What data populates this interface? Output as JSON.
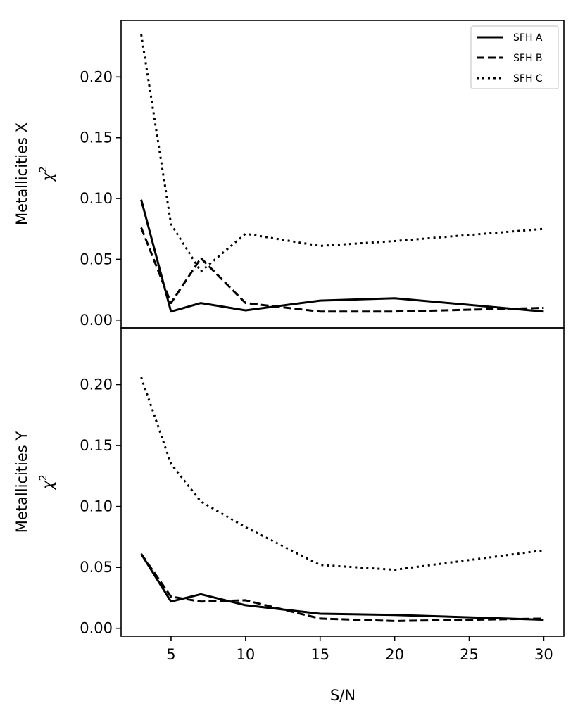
{
  "chart_data": [
    {
      "type": "line",
      "panel": "top",
      "ylabel": "Metallicities X",
      "ylabel_math": "χ",
      "ylabel_sup": "2",
      "xlabel": "",
      "xlim": [
        1.65,
        31.35
      ],
      "ylim": [
        -0.0065,
        0.2465
      ],
      "yticks": [
        0.0,
        0.05,
        0.1,
        0.15,
        0.2
      ],
      "ytick_labels": [
        "0.00",
        "0.05",
        "0.10",
        "0.15",
        "0.20"
      ],
      "x": [
        3,
        5,
        7,
        10,
        15,
        20,
        30
      ],
      "series": [
        {
          "name": "SFH A",
          "style": "solid",
          "values": [
            0.099,
            0.007,
            0.014,
            0.008,
            0.016,
            0.018,
            0.007
          ]
        },
        {
          "name": "SFH B",
          "style": "dashed",
          "values": [
            0.076,
            0.014,
            0.051,
            0.014,
            0.007,
            0.007,
            0.01
          ]
        },
        {
          "name": "SFH C",
          "style": "dotted",
          "values": [
            0.235,
            0.079,
            0.04,
            0.071,
            0.061,
            0.065,
            0.075
          ]
        }
      ],
      "legend": {
        "placement": "top-right",
        "entries": [
          "SFH A",
          "SFH B",
          "SFH C"
        ]
      }
    },
    {
      "type": "line",
      "panel": "bottom",
      "ylabel": "Metallicities Y",
      "ylabel_math": "χ",
      "ylabel_sup": "2",
      "xlabel": "S/N",
      "xlim": [
        1.65,
        31.35
      ],
      "ylim": [
        -0.0065,
        0.2465
      ],
      "yticks": [
        0.0,
        0.05,
        0.1,
        0.15,
        0.2
      ],
      "ytick_labels": [
        "0.00",
        "0.05",
        "0.10",
        "0.15",
        "0.20"
      ],
      "xticks": [
        5,
        10,
        15,
        20,
        25,
        30
      ],
      "xtick_labels": [
        "5",
        "10",
        "15",
        "20",
        "25",
        "30"
      ],
      "x": [
        3,
        5,
        7,
        10,
        15,
        20,
        30
      ],
      "series": [
        {
          "name": "SFH A",
          "style": "solid",
          "values": [
            0.061,
            0.022,
            0.028,
            0.019,
            0.012,
            0.011,
            0.007
          ]
        },
        {
          "name": "SFH B",
          "style": "dashed",
          "values": [
            0.061,
            0.026,
            0.022,
            0.023,
            0.008,
            0.006,
            0.008
          ]
        },
        {
          "name": "SFH C",
          "style": "dotted",
          "values": [
            0.206,
            0.135,
            0.104,
            0.083,
            0.052,
            0.048,
            0.064
          ]
        }
      ]
    }
  ]
}
